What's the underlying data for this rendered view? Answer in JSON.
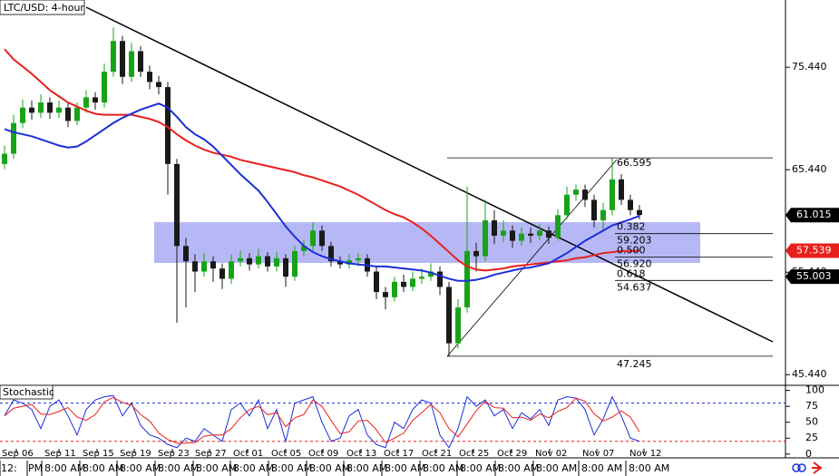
{
  "chart_data": {
    "type": "candlestick",
    "title": "LTC/USD: 4-hour",
    "candle_colors": {
      "up": "#17a317",
      "down": "#1a1a1a"
    },
    "candles": [
      [
        66,
        67.8,
        65.5,
        67
      ],
      [
        67,
        70.8,
        66.5,
        70
      ],
      [
        70,
        72.3,
        69.5,
        71.5
      ],
      [
        71.5,
        72.2,
        70.3,
        71
      ],
      [
        71,
        72.8,
        70.5,
        72
      ],
      [
        72,
        72.5,
        70.4,
        71
      ],
      [
        71,
        72.2,
        70.5,
        71.5
      ],
      [
        71.5,
        72,
        69.6,
        70.2
      ],
      [
        70.2,
        72,
        69.8,
        71.5
      ],
      [
        71.5,
        73.2,
        71,
        72.5
      ],
      [
        72.5,
        73,
        71.3,
        72
      ],
      [
        72,
        75.8,
        71.5,
        75
      ],
      [
        75,
        79.3,
        74.5,
        78
      ],
      [
        78,
        78.5,
        73.8,
        74.5
      ],
      [
        74.5,
        77.8,
        74,
        77
      ],
      [
        77,
        77.5,
        74.5,
        75
      ],
      [
        75,
        75.6,
        73.3,
        74
      ],
      [
        74,
        74.6,
        72.8,
        73.5
      ],
      [
        73.5,
        74,
        63,
        66
      ],
      [
        66,
        66.5,
        50.5,
        58
      ],
      [
        58,
        58.8,
        52,
        56.5
      ],
      [
        56.5,
        57.2,
        53.5,
        55.5
      ],
      [
        55.5,
        57.3,
        55,
        56.5
      ],
      [
        56.5,
        57,
        54.5,
        55.8
      ],
      [
        55.8,
        56.3,
        53.8,
        54.8
      ],
      [
        54.8,
        57.2,
        54.3,
        56.5
      ],
      [
        56.5,
        57.5,
        56,
        56.8
      ],
      [
        56.8,
        57.3,
        55.6,
        56.2
      ],
      [
        56.2,
        57.7,
        55.8,
        57
      ],
      [
        57,
        57.4,
        55.5,
        56
      ],
      [
        56,
        57.4,
        55.5,
        56.8
      ],
      [
        56.8,
        57.2,
        54,
        55
      ],
      [
        55,
        58,
        54.6,
        57.5
      ],
      [
        57.5,
        58.6,
        57,
        58
      ],
      [
        58,
        60.3,
        57.5,
        59.5
      ],
      [
        59.5,
        60,
        57.5,
        58
      ],
      [
        58,
        58.4,
        56,
        56.5
      ],
      [
        56.5,
        57,
        55.8,
        56.2
      ],
      [
        56.2,
        57.2,
        55.8,
        56.6
      ],
      [
        56.6,
        57.3,
        56,
        56.8
      ],
      [
        56.8,
        57.2,
        55,
        55.5
      ],
      [
        55.5,
        56,
        52.8,
        53.5
      ],
      [
        53.5,
        54,
        51.8,
        53
      ],
      [
        53,
        55,
        52.6,
        54.5
      ],
      [
        54.5,
        55.2,
        53.5,
        54
      ],
      [
        54,
        55.5,
        53.6,
        54.8
      ],
      [
        54.8,
        55.8,
        54.3,
        55
      ],
      [
        55,
        56.3,
        54.6,
        55.5
      ],
      [
        55.5,
        56,
        53.2,
        54
      ],
      [
        54,
        54.5,
        47.245,
        48.5
      ],
      [
        48.5,
        52.8,
        48,
        52
      ],
      [
        52,
        63.8,
        51.5,
        57.5
      ],
      [
        57.5,
        58.3,
        55.5,
        57
      ],
      [
        57,
        62.5,
        56.5,
        60.5
      ],
      [
        60.5,
        61.5,
        58.2,
        59
      ],
      [
        59,
        60.5,
        58.4,
        59.5
      ],
      [
        59.5,
        60,
        57.8,
        58.5
      ],
      [
        58.5,
        59.8,
        58,
        59.2
      ],
      [
        59.2,
        59.8,
        58.3,
        59
      ],
      [
        59,
        60.1,
        58.6,
        59.5
      ],
      [
        59.5,
        59.9,
        58.2,
        58.8
      ],
      [
        58.8,
        61.6,
        58.5,
        61
      ],
      [
        61,
        63.8,
        60.6,
        63
      ],
      [
        63,
        64,
        62.4,
        63.5
      ],
      [
        63.5,
        64,
        61.8,
        62.5
      ],
      [
        62.5,
        63,
        59.8,
        60.5
      ],
      [
        60.5,
        62.2,
        59.5,
        61.5
      ],
      [
        61.5,
        66.595,
        61,
        64.5
      ],
      [
        64.5,
        65,
        62,
        62.5
      ],
      [
        62.5,
        63,
        61,
        61.5
      ],
      [
        61.5,
        62,
        60.6,
        61.015
      ]
    ],
    "series": [
      {
        "color": "#e8201c",
        "values": [
          77.2,
          76.2,
          75.5,
          74.8,
          74,
          73.2,
          72.6,
          72,
          71.6,
          71.2,
          70.9,
          70.8,
          70.8,
          70.8,
          70.8,
          70.6,
          70.4,
          70.1,
          69.6,
          68.9,
          68.3,
          67.8,
          67.4,
          67.1,
          66.9,
          66.7,
          66.4,
          66.2,
          66,
          65.8,
          65.6,
          65.4,
          65.2,
          64.9,
          64.7,
          64.4,
          64.1,
          63.8,
          63.4,
          63,
          62.5,
          62,
          61.5,
          61.1,
          60.8,
          60.3,
          59.7,
          59,
          58.2,
          57.4,
          56.6,
          56,
          55.7,
          55.6,
          55.7,
          55.8,
          56,
          56.1,
          56.2,
          56.3,
          56.4,
          56.5,
          56.6,
          56.8,
          56.9,
          57.1,
          57.3,
          57.4,
          57.5,
          57.5,
          57.539
        ]
      },
      {
        "color": "#1c2fd8",
        "values": [
          69.4,
          69.1,
          68.9,
          68.7,
          68.4,
          68.1,
          67.8,
          67.6,
          67.7,
          68.2,
          68.8,
          69.4,
          70,
          70.5,
          70.9,
          71.3,
          71.6,
          71.9,
          71.5,
          70.6,
          69.6,
          68.9,
          68.4,
          67.7,
          66.8,
          65.9,
          65,
          64.2,
          63.4,
          62.3,
          61.1,
          59.9,
          58.9,
          58,
          57.4,
          57,
          56.7,
          56.5,
          56.3,
          56.2,
          56.1,
          56,
          56,
          55.9,
          55.8,
          55.7,
          55.6,
          55.4,
          55.1,
          54.8,
          54.6,
          54.6,
          54.7,
          54.9,
          55.2,
          55.4,
          55.6,
          55.8,
          55.9,
          56.1,
          56.3,
          56.8,
          57.3,
          57.9,
          58.5,
          59,
          59.5,
          60,
          60.3,
          60.6,
          60.942
        ]
      }
    ],
    "ylim": [
      44.4,
      82.0
    ],
    "yticks": [
      {
        "value": 75.44,
        "label": "75.440"
      },
      {
        "value": 65.44,
        "label": "65.440"
      },
      {
        "value": 55.44,
        "label": "55.440"
      },
      {
        "value": 45.44,
        "label": "45.440"
      }
    ],
    "price_tags": [
      {
        "value": 61.015,
        "label": "61.015",
        "color": "#000000"
      },
      {
        "value": 57.539,
        "label": "57.539",
        "color": "#e8201c"
      },
      {
        "value": 55.003,
        "label": "55.003",
        "color": "#000000"
      }
    ],
    "fib": [
      {
        "value": 66.595,
        "label": "66.595"
      },
      {
        "value": 59.203,
        "label": "59.203",
        "ratio": "0.382"
      },
      {
        "value": 56.92,
        "label": "56.920",
        "ratio": "0.500"
      },
      {
        "value": 54.637,
        "label": "54.637",
        "ratio": "0.618"
      },
      {
        "value": 47.245,
        "label": "47.245"
      }
    ],
    "date_labels": [
      "Sep 06",
      "Sep 11",
      "Sep 15",
      "Sep 19",
      "Sep 23",
      "Sep 27",
      "Oct 01",
      "Oct 05",
      "Oct 09",
      "Oct 13",
      "Oct 17",
      "Oct 21",
      "Oct 25",
      "Oct 29",
      "Nov 02",
      "Nov 07",
      "Nov 12"
    ],
    "time_labels": [
      "12:",
      "PM",
      "8:00 AM",
      "8:00 AM",
      "8:00 AM",
      "8:00 AM",
      "8:00 AM",
      "8:00 AM",
      "8:00 AM",
      "8:00 AM",
      "8:00 AM",
      "8:00 AM",
      "8:00 AM",
      "8:00 AM",
      "8:00 AM",
      "8:00 AM",
      "8:00 AM",
      "8:00 AM"
    ],
    "stochastic": {
      "title": "Stochastic",
      "ylim": [
        -6,
        108
      ],
      "yticks": [
        100,
        75,
        50,
        25,
        0
      ],
      "levels": [
        {
          "value": 80,
          "color": "#1c2fd8"
        },
        {
          "value": 20,
          "color": "#e8201c"
        }
      ],
      "series": [
        {
          "color": "#1c2fd8",
          "values": [
            60,
            85,
            80,
            70,
            40,
            75,
            85,
            60,
            30,
            70,
            85,
            90,
            92,
            60,
            80,
            45,
            30,
            25,
            15,
            10,
            25,
            20,
            40,
            30,
            20,
            70,
            80,
            60,
            85,
            40,
            70,
            20,
            80,
            85,
            90,
            50,
            20,
            25,
            60,
            70,
            30,
            15,
            10,
            50,
            40,
            70,
            85,
            80,
            30,
            10,
            40,
            90,
            75,
            85,
            60,
            70,
            40,
            65,
            55,
            70,
            45,
            85,
            90,
            88,
            70,
            30,
            55,
            90,
            60,
            25,
            20
          ]
        },
        {
          "color": "#e8201c",
          "values": [
            60,
            72,
            75,
            78,
            63,
            62,
            67,
            73,
            58,
            53,
            62,
            82,
            89,
            81,
            77,
            62,
            52,
            33,
            23,
            17,
            17,
            18,
            28,
            30,
            30,
            40,
            57,
            70,
            75,
            62,
            65,
            43,
            57,
            62,
            85,
            75,
            53,
            32,
            35,
            52,
            53,
            38,
            18,
            25,
            33,
            53,
            65,
            78,
            65,
            40,
            27,
            47,
            68,
            83,
            73,
            72,
            57,
            58,
            53,
            63,
            57,
            67,
            73,
            88,
            83,
            63,
            52,
            58,
            68,
            58,
            35
          ]
        }
      ]
    }
  }
}
